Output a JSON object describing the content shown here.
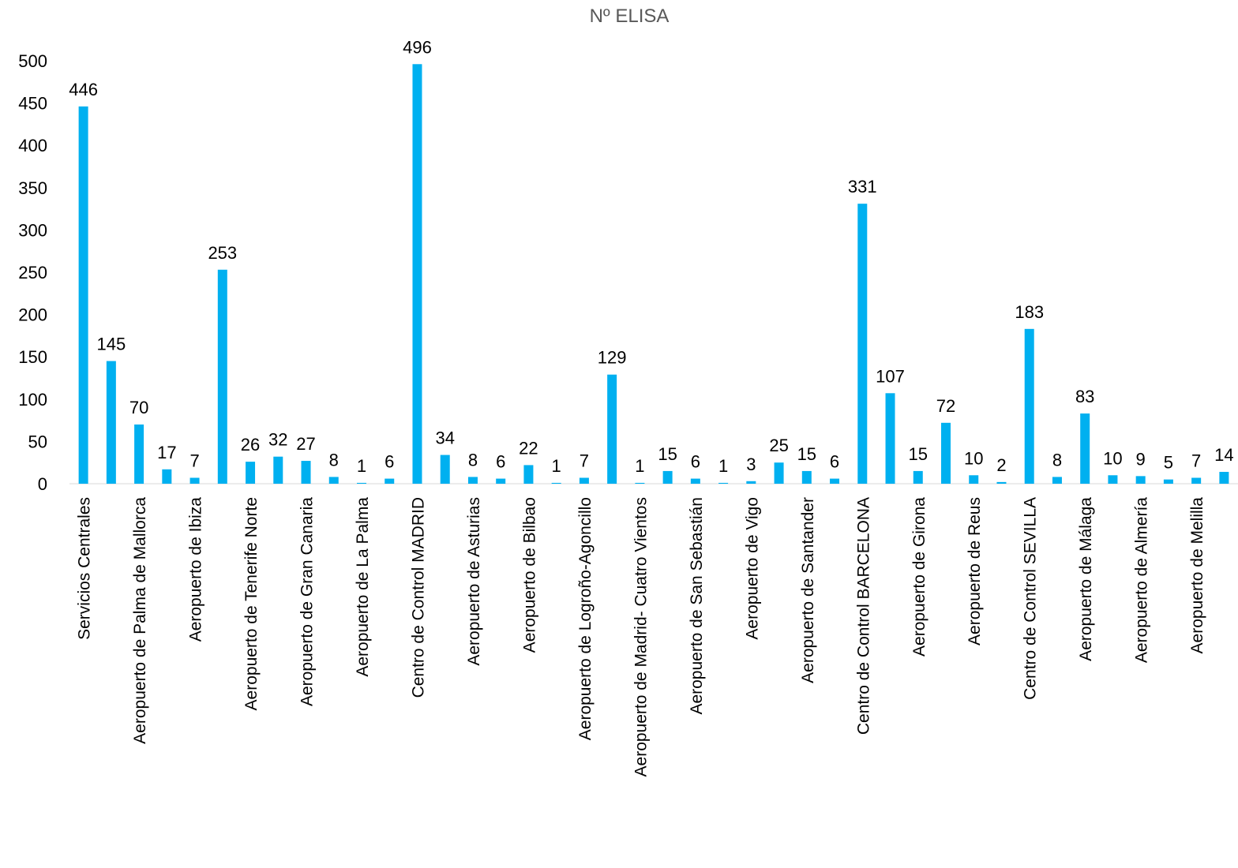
{
  "chart_data": {
    "type": "bar",
    "title": "Nº ELISA",
    "xlabel": "",
    "ylabel": "",
    "ylim": [
      0,
      500
    ],
    "yticks": [
      0,
      50,
      100,
      150,
      200,
      250,
      300,
      350,
      400,
      450,
      500
    ],
    "grid": false,
    "legend": "none",
    "bar_color": "#00B0F0",
    "category_labels": [
      "Servicios Centrales",
      "Aeropuerto de Palma de Mallorca",
      "Aeropuerto de Ibiza",
      "Aeropuerto de Tenerife Norte",
      "Aeropuerto de Gran Canaria",
      "Aeropuerto de La Palma",
      "Centro de Control MADRID",
      "Aeropuerto de Asturias",
      "Aeropuerto de Bilbao",
      "Aeropuerto de Logroño-Agoncillo",
      "Aeropuerto de Madrid- Cuatro Vientos",
      "Aeropuerto de San Sebastián",
      "Aeropuerto de Vigo",
      "Aeropuerto de Santander",
      "Centro de Control BARCELONA",
      "Aeropuerto de Girona",
      "Aeropuerto de Reus",
      "Centro de Control SEVILLA",
      "Aeropuerto de Málaga",
      "Aeropuerto de Almería",
      "Aeropuerto de Melilla"
    ],
    "values": [
      446,
      145,
      70,
      17,
      7,
      253,
      26,
      32,
      27,
      8,
      1,
      6,
      496,
      34,
      8,
      6,
      22,
      1,
      7,
      129,
      1,
      15,
      6,
      1,
      3,
      25,
      15,
      6,
      331,
      107,
      15,
      72,
      10,
      2,
      183,
      8,
      83,
      10,
      9,
      5,
      7,
      14
    ]
  }
}
